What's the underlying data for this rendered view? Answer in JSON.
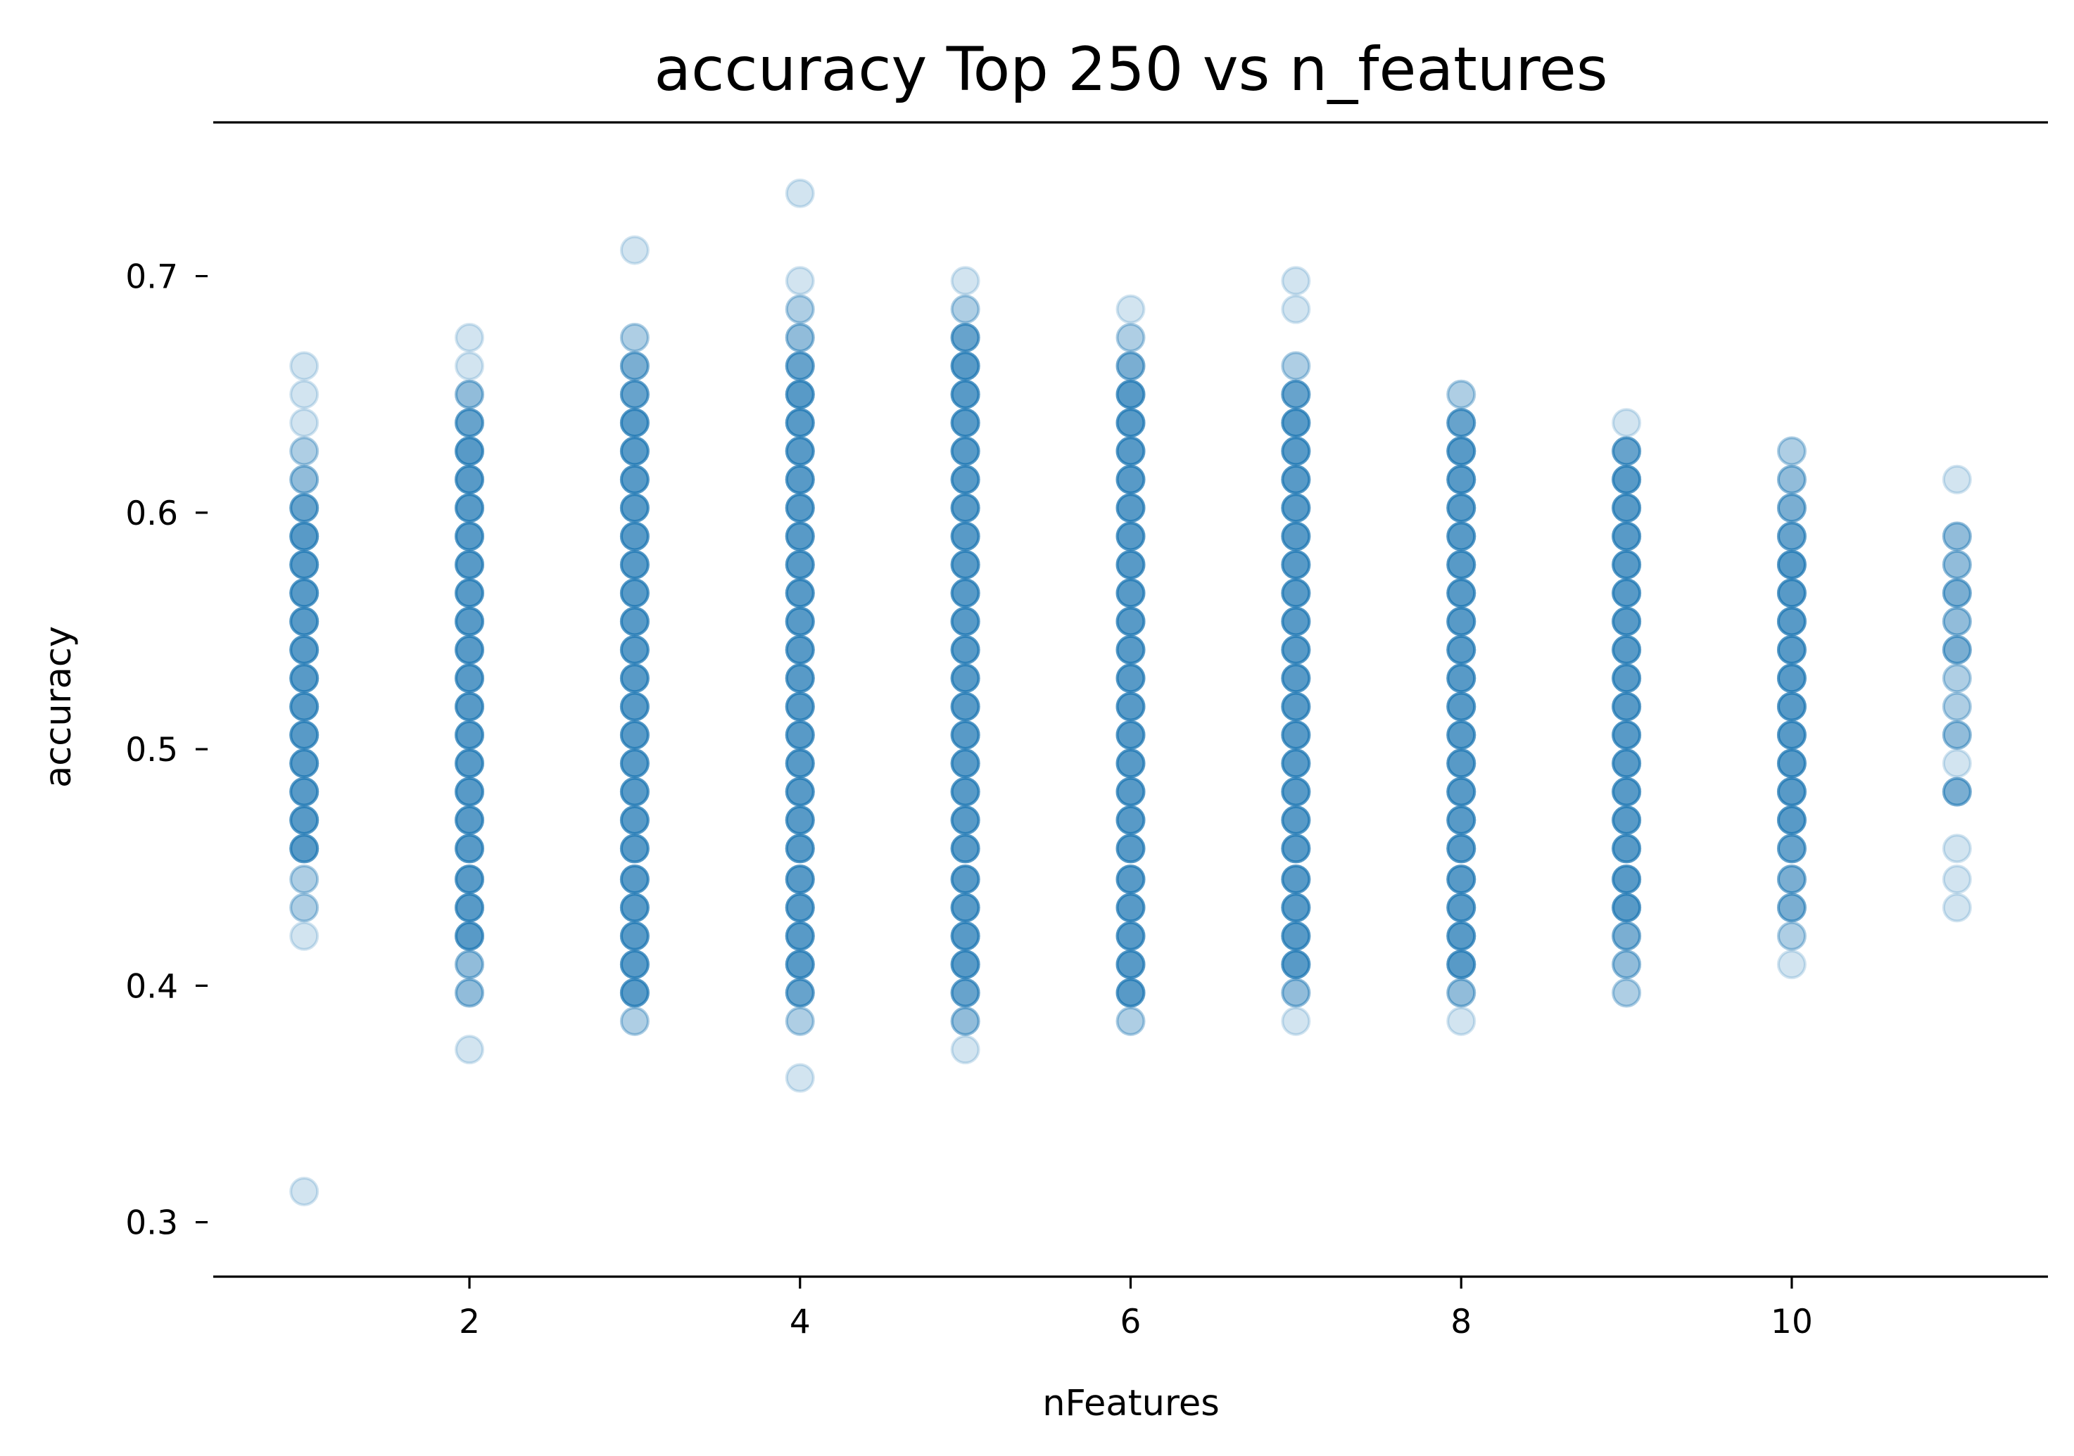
{
  "chart_data": {
    "type": "scatter",
    "title": "accuracy Top 250 vs n_features",
    "xlabel": "nFeatures",
    "ylabel": "accuracy",
    "xlim": [
      0.45,
      11.55
    ],
    "ylim": [
      0.277,
      0.765
    ],
    "xticks": [
      2,
      4,
      6,
      8,
      10
    ],
    "yticks": [
      0.3,
      0.4,
      0.5,
      0.6,
      0.7
    ],
    "ytick_labels": [
      "0.3",
      "0.4",
      "0.5",
      "0.6",
      "0.7"
    ],
    "grid": false,
    "legend": "none",
    "marker_color": "#1f77b4",
    "marker_alpha": 0.2,
    "x_step": 1,
    "accuracy_step": 0.012,
    "series": [
      {
        "x": 1,
        "counts": {
          "0.313": 1,
          "0.421": 1,
          "0.433": 2,
          "0.445": 2,
          "0.458": 6,
          "0.470": 6,
          "0.482": 6,
          "0.494": 6,
          "0.506": 6,
          "0.518": 6,
          "0.530": 6,
          "0.542": 6,
          "0.554": 6,
          "0.566": 6,
          "0.578": 6,
          "0.590": 6,
          "0.602": 5,
          "0.614": 3,
          "0.626": 2,
          "0.638": 1,
          "0.650": 1,
          "0.662": 1
        }
      },
      {
        "x": 2,
        "counts": {
          "0.373": 1,
          "0.397": 3,
          "0.409": 3,
          "0.421": 6,
          "0.433": 6,
          "0.445": 6,
          "0.458": 6,
          "0.470": 6,
          "0.482": 6,
          "0.494": 6,
          "0.506": 6,
          "0.518": 6,
          "0.530": 6,
          "0.542": 6,
          "0.554": 6,
          "0.566": 6,
          "0.578": 6,
          "0.590": 6,
          "0.602": 6,
          "0.614": 6,
          "0.626": 6,
          "0.638": 5,
          "0.650": 3,
          "0.662": 1,
          "0.674": 1
        }
      },
      {
        "x": 3,
        "counts": {
          "0.385": 2,
          "0.397": 6,
          "0.409": 6,
          "0.421": 6,
          "0.433": 6,
          "0.445": 6,
          "0.458": 6,
          "0.470": 6,
          "0.482": 6,
          "0.494": 6,
          "0.506": 6,
          "0.518": 6,
          "0.530": 6,
          "0.542": 6,
          "0.554": 6,
          "0.566": 6,
          "0.578": 6,
          "0.590": 6,
          "0.602": 6,
          "0.614": 6,
          "0.626": 6,
          "0.638": 6,
          "0.650": 5,
          "0.662": 4,
          "0.674": 2,
          "0.711": 1
        }
      },
      {
        "x": 4,
        "counts": {
          "0.361": 1,
          "0.385": 2,
          "0.397": 5,
          "0.409": 6,
          "0.421": 6,
          "0.433": 6,
          "0.445": 6,
          "0.458": 6,
          "0.470": 6,
          "0.482": 6,
          "0.494": 6,
          "0.506": 6,
          "0.518": 6,
          "0.530": 6,
          "0.542": 6,
          "0.554": 6,
          "0.566": 6,
          "0.578": 6,
          "0.590": 6,
          "0.602": 6,
          "0.614": 6,
          "0.626": 6,
          "0.638": 6,
          "0.650": 6,
          "0.662": 5,
          "0.674": 3,
          "0.686": 2,
          "0.698": 1,
          "0.735": 1
        }
      },
      {
        "x": 5,
        "counts": {
          "0.373": 1,
          "0.385": 3,
          "0.397": 5,
          "0.409": 6,
          "0.421": 6,
          "0.433": 6,
          "0.445": 6,
          "0.458": 6,
          "0.470": 6,
          "0.482": 6,
          "0.494": 6,
          "0.506": 6,
          "0.518": 6,
          "0.530": 6,
          "0.542": 6,
          "0.554": 6,
          "0.566": 6,
          "0.578": 6,
          "0.590": 6,
          "0.602": 6,
          "0.614": 6,
          "0.626": 6,
          "0.638": 6,
          "0.650": 6,
          "0.662": 6,
          "0.674": 5,
          "0.686": 2,
          "0.698": 1
        }
      },
      {
        "x": 6,
        "counts": {
          "0.385": 2,
          "0.397": 6,
          "0.409": 6,
          "0.421": 6,
          "0.433": 6,
          "0.445": 6,
          "0.458": 6,
          "0.470": 6,
          "0.482": 6,
          "0.494": 6,
          "0.506": 6,
          "0.518": 6,
          "0.530": 6,
          "0.542": 6,
          "0.554": 6,
          "0.566": 6,
          "0.578": 6,
          "0.590": 6,
          "0.602": 6,
          "0.614": 6,
          "0.626": 6,
          "0.638": 6,
          "0.650": 6,
          "0.662": 4,
          "0.674": 2,
          "0.686": 1
        }
      },
      {
        "x": 7,
        "counts": {
          "0.385": 1,
          "0.397": 3,
          "0.409": 6,
          "0.421": 6,
          "0.433": 6,
          "0.445": 6,
          "0.458": 6,
          "0.470": 6,
          "0.482": 6,
          "0.494": 6,
          "0.506": 6,
          "0.518": 6,
          "0.530": 6,
          "0.542": 6,
          "0.554": 6,
          "0.566": 6,
          "0.578": 6,
          "0.590": 6,
          "0.602": 6,
          "0.614": 6,
          "0.626": 6,
          "0.638": 6,
          "0.650": 5,
          "0.662": 2,
          "0.686": 1,
          "0.698": 1
        }
      },
      {
        "x": 8,
        "counts": {
          "0.385": 1,
          "0.397": 3,
          "0.409": 6,
          "0.421": 6,
          "0.433": 6,
          "0.445": 6,
          "0.458": 6,
          "0.470": 6,
          "0.482": 6,
          "0.494": 6,
          "0.506": 6,
          "0.518": 6,
          "0.530": 6,
          "0.542": 6,
          "0.554": 6,
          "0.566": 6,
          "0.578": 6,
          "0.590": 6,
          "0.602": 6,
          "0.614": 6,
          "0.626": 6,
          "0.638": 5,
          "0.650": 2
        }
      },
      {
        "x": 9,
        "counts": {
          "0.397": 2,
          "0.409": 3,
          "0.421": 4,
          "0.433": 6,
          "0.445": 6,
          "0.458": 6,
          "0.470": 6,
          "0.482": 6,
          "0.494": 6,
          "0.506": 6,
          "0.518": 6,
          "0.530": 6,
          "0.542": 6,
          "0.554": 6,
          "0.566": 6,
          "0.578": 6,
          "0.590": 6,
          "0.602": 6,
          "0.614": 6,
          "0.626": 5,
          "0.638": 1
        }
      },
      {
        "x": 10,
        "counts": {
          "0.409": 1,
          "0.421": 2,
          "0.433": 4,
          "0.445": 4,
          "0.458": 5,
          "0.470": 6,
          "0.482": 6,
          "0.494": 6,
          "0.506": 6,
          "0.518": 6,
          "0.530": 6,
          "0.542": 6,
          "0.554": 6,
          "0.566": 6,
          "0.578": 6,
          "0.590": 5,
          "0.602": 4,
          "0.614": 3,
          "0.626": 2
        }
      },
      {
        "x": 11,
        "counts": {
          "0.433": 1,
          "0.445": 1,
          "0.458": 1,
          "0.482": 4,
          "0.494": 1,
          "0.506": 3,
          "0.518": 2,
          "0.530": 2,
          "0.542": 4,
          "0.554": 3,
          "0.566": 4,
          "0.578": 3,
          "0.590": 3,
          "0.614": 1
        }
      }
    ]
  }
}
